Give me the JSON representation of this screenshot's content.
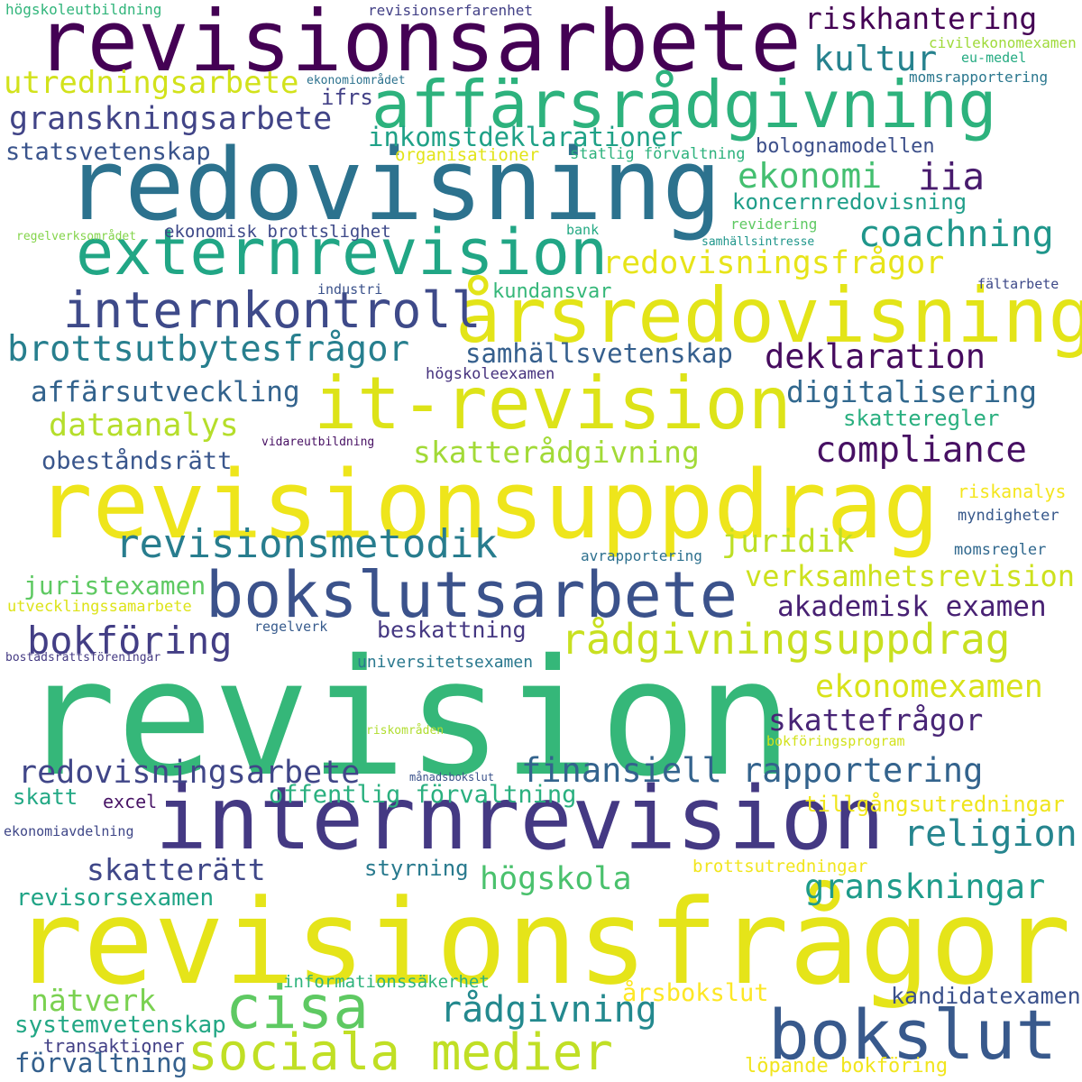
{
  "words": [
    {
      "text": "revision",
      "color": "#35b779"
    },
    {
      "text": "revisionsfrågor",
      "color": "#e5e419"
    },
    {
      "text": "revisionsarbete",
      "color": "#440154"
    },
    {
      "text": "redovisning",
      "color": "#2c728e"
    },
    {
      "text": "revisionsuppdrag",
      "color": "#eee51b"
    },
    {
      "text": "internrevision",
      "color": "#443983"
    },
    {
      "text": "affärsrådgivning",
      "color": "#2db27d"
    },
    {
      "text": "årsredovisning",
      "color": "#e3e418"
    },
    {
      "text": "externrevision",
      "color": "#21a685"
    },
    {
      "text": "it-revision",
      "color": "#dde318"
    },
    {
      "text": "bokslutsarbete",
      "color": "#3b528b"
    },
    {
      "text": "internkontroll",
      "color": "#3e4a89"
    },
    {
      "text": "sociala medier",
      "color": "#c0df25"
    },
    {
      "text": "bokslut",
      "color": "#38598c"
    },
    {
      "text": "cisa",
      "color": "#5ec962"
    },
    {
      "text": "revisionsmetodik",
      "color": "#287d8e"
    },
    {
      "text": "rådgivningsuppdrag",
      "color": "#c8e020"
    },
    {
      "text": "brottsutbytesfrågor",
      "color": "#277f8e"
    },
    {
      "text": "redovisningsfrågor",
      "color": "#e7e419"
    },
    {
      "text": "finansiell rapportering",
      "color": "#33638d"
    },
    {
      "text": "redovisningsarbete",
      "color": "#404688"
    },
    {
      "text": "granskningsarbete",
      "color": "#414487"
    },
    {
      "text": "utredningsarbete",
      "color": "#d2e21b"
    },
    {
      "text": "inkomstdeklarationer",
      "color": "#1fa187"
    },
    {
      "text": "skatterådgivning",
      "color": "#a2da37"
    },
    {
      "text": "compliance",
      "color": "#471063"
    },
    {
      "text": "deklaration",
      "color": "#460b5e"
    },
    {
      "text": "digitalisering",
      "color": "#31688e"
    },
    {
      "text": "coachning",
      "color": "#1f968b"
    },
    {
      "text": "affärsutveckling",
      "color": "#33638d"
    },
    {
      "text": "dataanalys",
      "color": "#b5de2b"
    },
    {
      "text": "samhällsvetenskap",
      "color": "#355f8d"
    },
    {
      "text": "ekonomexamen",
      "color": "#d8e219"
    },
    {
      "text": "skattefrågor",
      "color": "#482576"
    },
    {
      "text": "verksamhetsrevision",
      "color": "#cde11d"
    },
    {
      "text": "akademisk examen",
      "color": "#482173"
    },
    {
      "text": "granskningar",
      "color": "#1e9b8a"
    },
    {
      "text": "religion",
      "color": "#25858e"
    },
    {
      "text": "skatterätt",
      "color": "#3f4788"
    },
    {
      "text": "bokföring",
      "color": "#433e85"
    },
    {
      "text": "rådgivning",
      "color": "#23898e"
    },
    {
      "text": "högskola",
      "color": "#4ac16d"
    },
    {
      "text": "riskhantering",
      "color": "#440154"
    },
    {
      "text": "kultur",
      "color": "#26828e"
    },
    {
      "text": "ekonomi",
      "color": "#44bf70"
    },
    {
      "text": "iia",
      "color": "#481b6d"
    },
    {
      "text": "juridik",
      "color": "#bddf26"
    },
    {
      "text": "nätverk",
      "color": "#7ad151"
    },
    {
      "text": "offentlig förvaltning",
      "color": "#2ab07f"
    },
    {
      "text": "juristexamen",
      "color": "#5ec962"
    },
    {
      "text": "obeståndsrätt",
      "color": "#39568c"
    },
    {
      "text": "revisorsexamen",
      "color": "#20a486"
    },
    {
      "text": "systemvetenskap",
      "color": "#22a785"
    },
    {
      "text": "förvaltning",
      "color": "#34608d"
    },
    {
      "text": "kandidatexamen",
      "color": "#3b518b"
    },
    {
      "text": "årsbokslut",
      "color": "#fde725"
    },
    {
      "text": "statsvetenskap",
      "color": "#3a548c"
    },
    {
      "text": "skatteregler",
      "color": "#29af7f"
    },
    {
      "text": "koncernredovisning",
      "color": "#1f9e89"
    },
    {
      "text": "bologna­modellen",
      "color": "#3c4f8a"
    },
    {
      "text": "kundansvar",
      "color": "#35b779"
    },
    {
      "text": "beskattning",
      "color": "#453882"
    },
    {
      "text": "ifrs",
      "color": "#424086"
    },
    {
      "text": "tillgångsutredningar",
      "color": "#efe51c"
    },
    {
      "text": "styrning",
      "color": "#297a8e"
    },
    {
      "text": "skatt",
      "color": "#22a884"
    },
    {
      "text": "transaktioner",
      "color": "#424086"
    },
    {
      "text": "löpande bokföring",
      "color": "#f1e51d"
    },
    {
      "text": "informationssäkerhet",
      "color": "#2eb37c"
    },
    {
      "text": "riskanalys",
      "color": "#f4e61e"
    },
    {
      "text": "brottsutredningar",
      "color": "#f1e51d"
    },
    {
      "text": "ekonomisk brottslighet",
      "color": "#3e4989"
    },
    {
      "text": "organisationer",
      "color": "#e2e418"
    },
    {
      "text": "statlig förvaltning",
      "color": "#2db27d"
    },
    {
      "text": "excel",
      "color": "#471365"
    },
    {
      "text": "universitetsexamen",
      "color": "#2a788e"
    },
    {
      "text": "utvecklingssamarbete",
      "color": "#dde318"
    },
    {
      "text": "myndigheter",
      "color": "#38598c"
    },
    {
      "text": "momsregler",
      "color": "#30688e"
    },
    {
      "text": "högskoleexamen",
      "color": "#46327e"
    },
    {
      "text": "högskoleutbildning",
      "color": "#31b57b"
    },
    {
      "text": "revisionserfarenhet",
      "color": "#424086"
    },
    {
      "text": "civilekonomexamen",
      "color": "#9fda3a"
    },
    {
      "text": "eu-medel",
      "color": "#25ab82"
    },
    {
      "text": "momsrapportering",
      "color": "#2a778e"
    },
    {
      "text": "ekonomiområdet",
      "color": "#2c728e"
    },
    {
      "text": "regelverksområdet",
      "color": "#84d44b"
    },
    {
      "text": "bank",
      "color": "#23a983"
    },
    {
      "text": "revidering",
      "color": "#5ec962"
    },
    {
      "text": "samhällsintresse",
      "color": "#1f968b"
    },
    {
      "text": "fältarbete",
      "color": "#3e4a89"
    },
    {
      "text": "industri",
      "color": "#3b528b"
    },
    {
      "text": "vidareutbildning",
      "color": "#471063"
    },
    {
      "text": "avrapportering",
      "color": "#2d708e"
    },
    {
      "text": "regelverk",
      "color": "#375b8d"
    },
    {
      "text": "bostadsrättsföreningar",
      "color": "#443a83"
    },
    {
      "text": "riskområden",
      "color": "#b0dd2f"
    },
    {
      "text": "bokföringsprogram",
      "color": "#d2e21b"
    },
    {
      "text": "månadsbokslut",
      "color": "#3b528b"
    },
    {
      "text": "ekonomiavdelning",
      "color": "#3f4788"
    }
  ]
}
